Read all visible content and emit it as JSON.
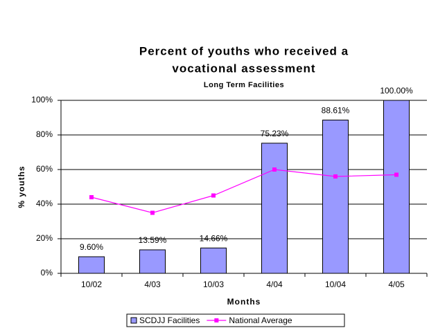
{
  "chart_data": {
    "type": "bar",
    "title": [
      "Percent of youths who received a",
      "vocational assessment"
    ],
    "subtitle": "Long Term Facilities",
    "x_label": "Months",
    "y_label": "% youths",
    "categories": [
      "10/02",
      "4/03",
      "10/03",
      "4/04",
      "10/04",
      "4/05"
    ],
    "series": [
      {
        "name": "SCDJJ Facilities",
        "type": "bar",
        "color": "#9999ff",
        "values": [
          9.6,
          13.59,
          14.66,
          75.23,
          88.61,
          100
        ],
        "value_labels": [
          "9.60%",
          "13.59%",
          "14.66%",
          "75.23%",
          "88.61%",
          "100.00%"
        ]
      },
      {
        "name": "National Average",
        "type": "line",
        "color": "#ff00ff",
        "values": [
          44,
          35,
          45,
          60,
          56,
          57
        ]
      }
    ],
    "ylim": [
      0,
      100
    ],
    "yticks": [
      {
        "value": 0,
        "label": "0%"
      },
      {
        "value": 20,
        "label": "20%"
      },
      {
        "value": 40,
        "label": "40%"
      },
      {
        "value": 60,
        "label": "60%"
      },
      {
        "value": 80,
        "label": "80%"
      },
      {
        "value": 100,
        "label": "100%"
      }
    ],
    "grid": true,
    "legend": "bottom"
  }
}
